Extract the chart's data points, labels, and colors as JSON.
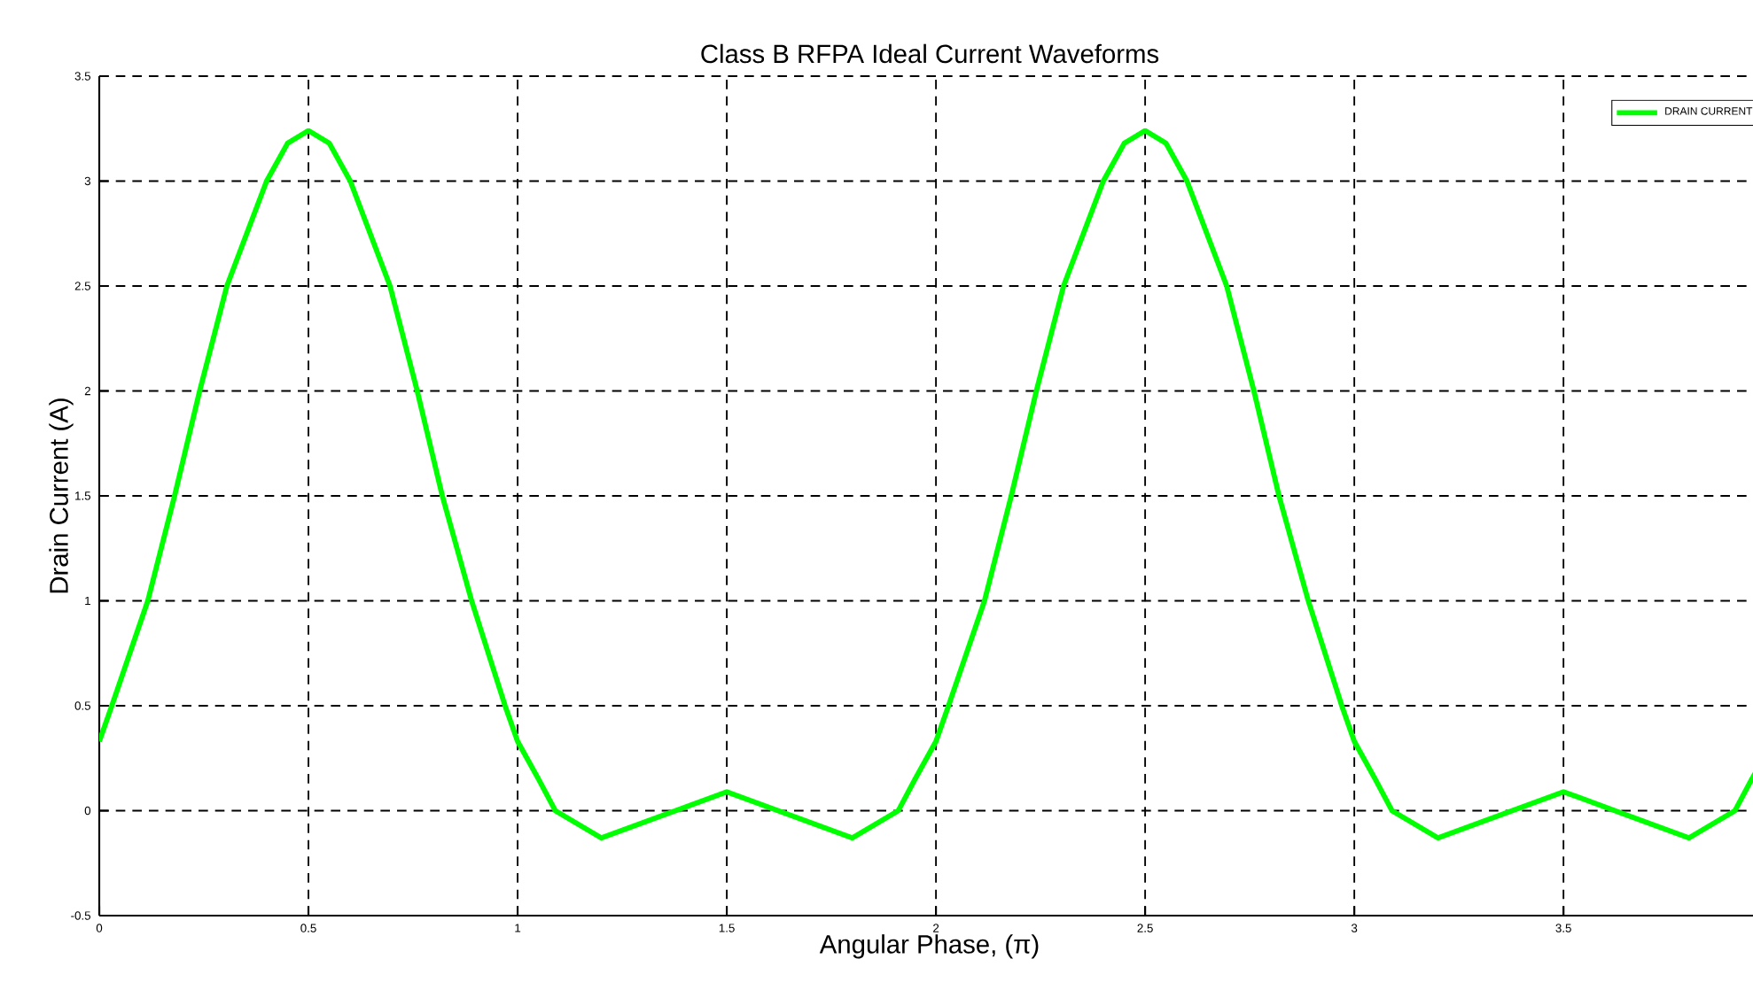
{
  "chart_data": {
    "type": "line",
    "title": "Class B RFPA Ideal Current Waveforms",
    "xlabel": "Angular Phase, (π)",
    "ylabel": "Drain Current (A)",
    "xlim": [
      0,
      3.97
    ],
    "ylim": [
      -0.5,
      3.5
    ],
    "xticks": [
      0,
      0.5,
      1,
      1.5,
      2,
      2.5,
      3,
      3.5
    ],
    "yticks": [
      -0.5,
      0,
      0.5,
      1,
      1.5,
      2,
      2.5,
      3,
      3.5
    ],
    "grid": true,
    "legend": "top right",
    "marker": "none",
    "line_style": "solid",
    "series": [
      {
        "name": "DRAIN CURRENT",
        "color": "#00ff00",
        "x": [
          0,
          0.03,
          0.116,
          0.18,
          0.24,
          0.305,
          0.4,
          0.45,
          0.5,
          0.55,
          0.6,
          0.695,
          0.76,
          0.82,
          0.89,
          0.97,
          1.0,
          1.05,
          1.09,
          1.2,
          1.35,
          1.5,
          1.65,
          1.8,
          1.91,
          1.95,
          2.0,
          2.03,
          2.116,
          2.18,
          2.24,
          2.305,
          2.4,
          2.45,
          2.5,
          2.55,
          2.6,
          2.695,
          2.76,
          2.82,
          2.89,
          2.97,
          3.0,
          3.05,
          3.09,
          3.2,
          3.35,
          3.5,
          3.65,
          3.8,
          3.91,
          3.95,
          3.97
        ],
        "values": [
          0.33,
          0.5,
          1,
          1.5,
          2,
          2.5,
          3,
          3.18,
          3.24,
          3.18,
          3,
          2.5,
          2,
          1.5,
          1,
          0.5,
          0.33,
          0.15,
          0,
          -0.13,
          -0.02,
          0.09,
          -0.02,
          -0.13,
          0,
          0.15,
          0.33,
          0.5,
          1,
          1.5,
          2,
          2.5,
          3,
          3.18,
          3.24,
          3.18,
          3,
          2.5,
          2,
          1.5,
          1,
          0.5,
          0.33,
          0.15,
          0,
          -0.13,
          -0.02,
          0.09,
          -0.02,
          -0.13,
          0,
          0.15,
          0.22
        ]
      }
    ]
  }
}
